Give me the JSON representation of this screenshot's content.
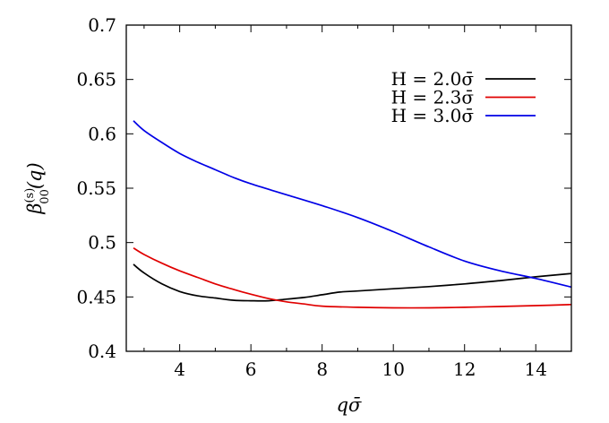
{
  "chart_data": {
    "type": "line",
    "title": "",
    "xlabel": "qσ̄",
    "ylabel": "β(s)00(q)",
    "ylabel_parts": {
      "base": "β",
      "sup": "(s)",
      "sub": "00",
      "arg": "(q)"
    },
    "xlim": [
      2.5,
      15
    ],
    "ylim": [
      0.4,
      0.7
    ],
    "x_ticks": [
      4,
      6,
      8,
      10,
      12,
      14
    ],
    "x_tick_labels": [
      "4",
      "6",
      "8",
      "10",
      "12",
      "14"
    ],
    "y_ticks": [
      0.4,
      0.45,
      0.5,
      0.55,
      0.6,
      0.65,
      0.7
    ],
    "y_tick_labels": [
      "0.4",
      "0.45",
      "0.5",
      "0.55",
      "0.6",
      "0.65",
      "0.7"
    ],
    "grid": false,
    "legend_position": "top-right",
    "series": [
      {
        "name": "H = 2.0σ̄",
        "color": "#000000",
        "x": [
          2.7,
          3.0,
          3.5,
          4.0,
          4.5,
          5.0,
          5.5,
          6.0,
          6.5,
          7.0,
          7.5,
          8.0,
          8.5,
          9.0,
          10.0,
          11.0,
          12.0,
          13.0,
          14.0,
          15.0
        ],
        "y": [
          0.48,
          0.472,
          0.462,
          0.455,
          0.451,
          0.449,
          0.447,
          0.4465,
          0.4465,
          0.448,
          0.4495,
          0.452,
          0.4545,
          0.4555,
          0.4575,
          0.4595,
          0.462,
          0.465,
          0.4685,
          0.4715
        ]
      },
      {
        "name": "H = 2.3σ̄",
        "color": "#e00000",
        "x": [
          2.7,
          3.0,
          3.5,
          4.0,
          4.5,
          5.0,
          5.5,
          6.0,
          6.5,
          7.0,
          7.5,
          8.0,
          9.0,
          10.0,
          11.0,
          12.0,
          13.0,
          14.0,
          15.0
        ],
        "y": [
          0.495,
          0.489,
          0.481,
          0.474,
          0.468,
          0.462,
          0.457,
          0.4525,
          0.4485,
          0.4455,
          0.4435,
          0.4415,
          0.4405,
          0.44,
          0.44,
          0.4405,
          0.4412,
          0.442,
          0.443
        ]
      },
      {
        "name": "H = 3.0σ̄",
        "color": "#0000e6",
        "x": [
          2.7,
          3.0,
          3.5,
          4.0,
          4.5,
          5.0,
          5.5,
          6.0,
          7.0,
          8.0,
          9.0,
          10.0,
          11.0,
          12.0,
          13.0,
          14.0,
          15.0
        ],
        "y": [
          0.612,
          0.603,
          0.592,
          0.582,
          0.574,
          0.567,
          0.56,
          0.554,
          0.544,
          0.534,
          0.523,
          0.51,
          0.496,
          0.483,
          0.474,
          0.467,
          0.459
        ]
      }
    ]
  }
}
